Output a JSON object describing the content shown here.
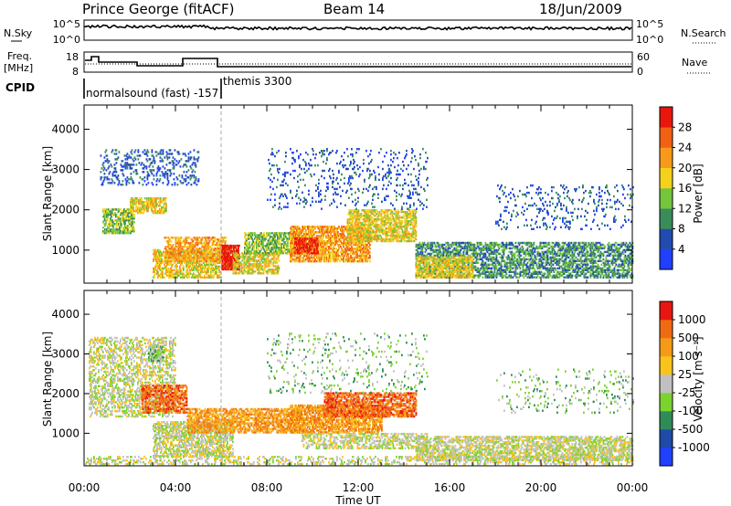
{
  "header": {
    "station": "Prince George (fitACF)",
    "beam": "Beam 14",
    "date": "18/Jun/2009"
  },
  "top_panels": {
    "nsky": {
      "label": "N.Sky",
      "left_ticks": [
        "10^5",
        "10^0"
      ],
      "right_label": "N.Search",
      "right_ticks": [
        "10^5",
        "10^0"
      ]
    },
    "freq": {
      "label_line1": "Freq.",
      "label_line2": "[MHz]",
      "left_ticks": [
        "18",
        "8"
      ],
      "right_label": "Nave",
      "right_ticks": [
        "60",
        "0"
      ]
    },
    "cpid": {
      "label": "CPID",
      "entries": [
        "normalsound (fast) -157",
        "themis 3300"
      ]
    }
  },
  "chart_data": [
    {
      "type": "heatmap",
      "panel": "power",
      "xlabel": "Time UT",
      "ylabel": "Slant Range [km]",
      "xlim": [
        0,
        24
      ],
      "ylim": [
        180,
        4600
      ],
      "x_ticks": [
        "00:00",
        "04:00",
        "08:00",
        "12:00",
        "16:00",
        "20:00",
        "00:00"
      ],
      "y_ticks": [
        1000,
        2000,
        3000,
        4000
      ],
      "colorbar": {
        "label": "Power [dB]",
        "ticks": [
          4,
          8,
          12,
          16,
          20,
          24,
          28
        ],
        "colors": [
          "#2040ff",
          "#214bb0",
          "#3a8c5a",
          "#74c43c",
          "#f4d21c",
          "#f79a1a",
          "#f26014",
          "#e8160c"
        ]
      },
      "regions": [
        {
          "t0": 0.8,
          "t1": 2.2,
          "r0": 1400,
          "r1": 2000,
          "level": 3,
          "density": 0.6
        },
        {
          "t0": 2.0,
          "t1": 3.6,
          "r0": 1900,
          "r1": 2300,
          "level": 4,
          "density": 0.6
        },
        {
          "t0": 0.7,
          "t1": 5.0,
          "r0": 2600,
          "r1": 3500,
          "level": 1,
          "density": 0.18
        },
        {
          "t0": 3.0,
          "t1": 6.0,
          "r0": 300,
          "r1": 1000,
          "level": 4,
          "density": 0.55
        },
        {
          "t0": 3.5,
          "t1": 6.2,
          "r0": 700,
          "r1": 1300,
          "level": 5,
          "density": 0.5
        },
        {
          "t0": 6.0,
          "t1": 6.8,
          "r0": 500,
          "r1": 1100,
          "level": 7,
          "density": 0.85
        },
        {
          "t0": 6.5,
          "t1": 8.5,
          "r0": 400,
          "r1": 900,
          "level": 4,
          "density": 0.5
        },
        {
          "t0": 7.0,
          "t1": 9.5,
          "r0": 900,
          "r1": 1400,
          "level": 3,
          "density": 0.6
        },
        {
          "t0": 9.0,
          "t1": 12.5,
          "r0": 700,
          "r1": 1600,
          "level": 5,
          "density": 0.6
        },
        {
          "t0": 9.2,
          "t1": 10.2,
          "r0": 900,
          "r1": 1300,
          "level": 7,
          "density": 0.7
        },
        {
          "t0": 11.5,
          "t1": 14.5,
          "r0": 1200,
          "r1": 2000,
          "level": 4,
          "density": 0.55
        },
        {
          "t0": 14.5,
          "t1": 24.0,
          "r0": 300,
          "r1": 1200,
          "level": 2,
          "density": 0.45
        },
        {
          "t0": 14.5,
          "t1": 17.0,
          "r0": 300,
          "r1": 800,
          "level": 4,
          "density": 0.6
        },
        {
          "t0": 8.0,
          "t1": 15.0,
          "r0": 2000,
          "r1": 3500,
          "level": 1,
          "density": 0.08
        },
        {
          "t0": 18.0,
          "t1": 24.0,
          "r0": 1500,
          "r1": 2600,
          "level": 1,
          "density": 0.08
        }
      ]
    },
    {
      "type": "heatmap",
      "panel": "velocity",
      "xlabel": "Time UT",
      "ylabel": "Slant Range [km]",
      "xlim": [
        0,
        24
      ],
      "ylim": [
        180,
        4600
      ],
      "x_ticks": [
        "00:00",
        "04:00",
        "08:00",
        "12:00",
        "16:00",
        "20:00",
        "00:00"
      ],
      "y_ticks": [
        1000,
        2000,
        3000,
        4000
      ],
      "colorbar": {
        "label": "Velocity [m s⁻¹]",
        "ticks": [
          "1000",
          "500",
          "100",
          "25",
          "-25",
          "-100",
          "-500",
          "-1000"
        ],
        "colors": [
          "#2040ff",
          "#1e4aa8",
          "#2f8c58",
          "#7cd32f",
          "#c0c0c0",
          "#f9c31c",
          "#f59a18",
          "#f06a14",
          "#e81610"
        ]
      },
      "regions": [
        {
          "t0": 0.2,
          "t1": 4.0,
          "r0": 1400,
          "r1": 3400,
          "level": 4,
          "density": 0.35
        },
        {
          "t0": 2.5,
          "t1": 4.5,
          "r0": 1500,
          "r1": 2200,
          "level": 7,
          "density": 0.5
        },
        {
          "t0": 2.8,
          "t1": 3.5,
          "r0": 2800,
          "r1": 3200,
          "level": 3,
          "density": 0.5
        },
        {
          "t0": 3.0,
          "t1": 6.5,
          "r0": 400,
          "r1": 1300,
          "level": 4,
          "density": 0.5
        },
        {
          "t0": 4.5,
          "t1": 9.5,
          "r0": 1000,
          "r1": 1600,
          "level": 6,
          "density": 0.55
        },
        {
          "t0": 9.0,
          "t1": 13.0,
          "r0": 1000,
          "r1": 1700,
          "level": 6,
          "density": 0.6
        },
        {
          "t0": 10.5,
          "t1": 14.5,
          "r0": 1400,
          "r1": 2000,
          "level": 7,
          "density": 0.55
        },
        {
          "t0": 9.5,
          "t1": 15.0,
          "r0": 600,
          "r1": 1000,
          "level": 4,
          "density": 0.4
        },
        {
          "t0": 14.5,
          "t1": 24.0,
          "r0": 300,
          "r1": 900,
          "level": 4,
          "density": 0.5
        },
        {
          "t0": 0.0,
          "t1": 24.0,
          "r0": 200,
          "r1": 400,
          "level": 4,
          "density": 0.25
        },
        {
          "t0": 8.0,
          "t1": 15.0,
          "r0": 2000,
          "r1": 3500,
          "level": 3,
          "density": 0.06
        },
        {
          "t0": 18.0,
          "t1": 24.0,
          "r0": 1500,
          "r1": 2600,
          "level": 3,
          "density": 0.06
        }
      ]
    }
  ]
}
